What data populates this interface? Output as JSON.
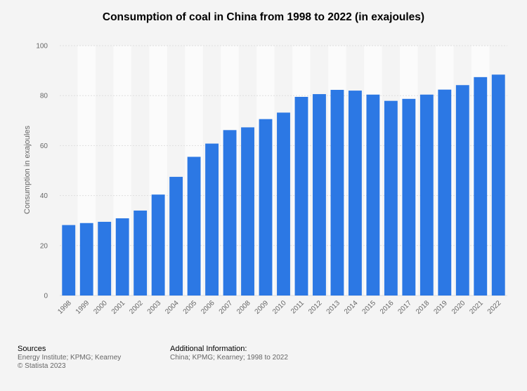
{
  "chart_data": {
    "type": "bar",
    "title": "Consumption of coal in China from 1998 to 2022 (in exajoules)",
    "xlabel": "",
    "ylabel": "Consumption in exajoules",
    "ylim": [
      0,
      100
    ],
    "yticks": [
      0,
      20,
      40,
      60,
      80,
      100
    ],
    "grid": true,
    "bar_color": "#2c78e4",
    "categories": [
      "1998",
      "1999",
      "2000",
      "2001",
      "2002",
      "2003",
      "2004",
      "2005",
      "2006",
      "2007",
      "2008",
      "2009",
      "2010",
      "2011",
      "2012",
      "2013",
      "2014",
      "2015",
      "2016",
      "2017",
      "2018",
      "2019",
      "2020",
      "2021",
      "2022"
    ],
    "values": [
      28.2,
      29.0,
      29.5,
      30.9,
      34.0,
      40.4,
      47.5,
      55.5,
      60.8,
      66.2,
      67.3,
      70.6,
      73.2,
      79.5,
      80.6,
      82.3,
      82.0,
      80.4,
      77.9,
      78.7,
      80.4,
      82.4,
      84.2,
      87.4,
      88.4
    ]
  },
  "footer": {
    "sources_heading": "Sources",
    "sources_line1": "Energy Institute; KPMG; Kearney",
    "sources_line2": "© Statista 2023",
    "info_heading": "Additional Information:",
    "info_line1": "China; KPMG; Kearney; 1998 to 2022"
  }
}
